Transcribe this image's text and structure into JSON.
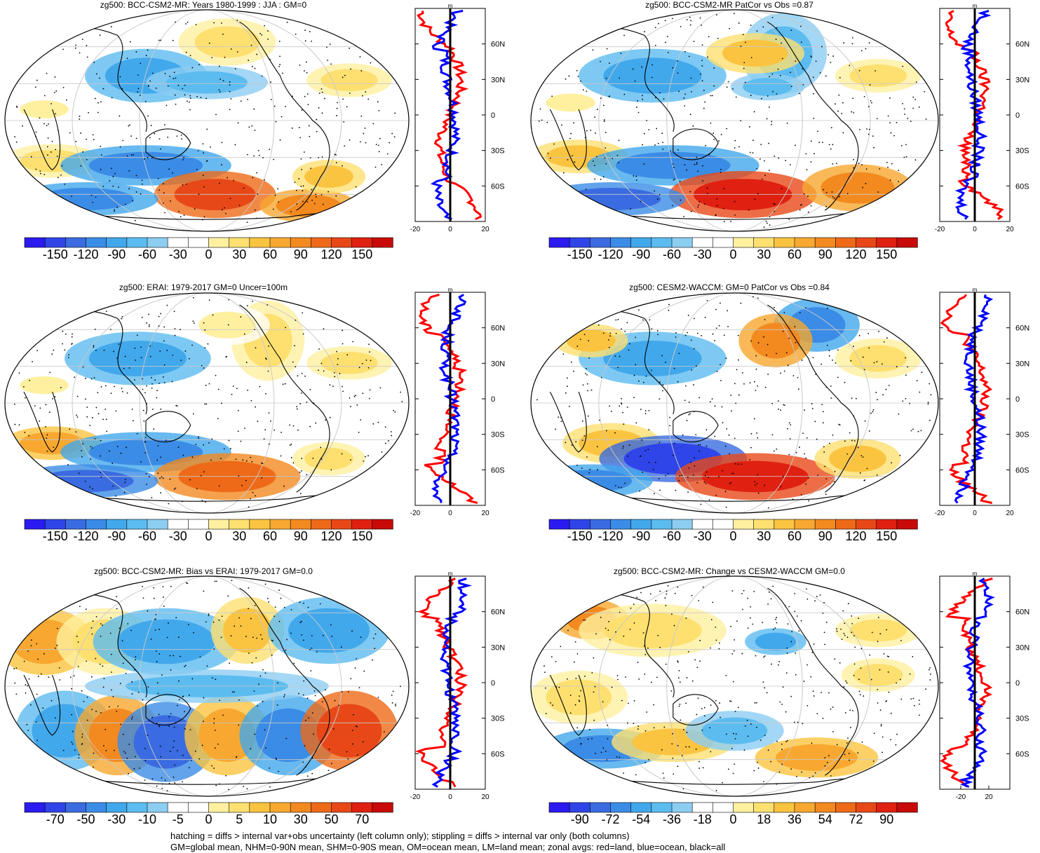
{
  "footer": {
    "line1": "hatching = diffs > internal var+obs uncertainty (left column only); stippling = diffs > internal var only (both columns)",
    "line2": "GM=global mean, NHM=0-90N mean, SHM=0-90S mean, OM=ocean mean, LM=land mean; zonal avgs: red=land, blue=ocean, black=all"
  },
  "profile_unit": "m",
  "lat_labels": [
    "60N",
    "30N",
    "0",
    "30S",
    "60S"
  ],
  "panels": [
    {
      "title": "zg500: BCC-CSM2-MR: Years 1980-1999 : JJA : GM=0",
      "cbar": [
        "-150",
        "-120",
        "-90",
        "-60",
        "-30",
        "0",
        "30",
        "60",
        "90",
        "120",
        "150"
      ],
      "xt": [
        "-20",
        "0",
        "20"
      ]
    },
    {
      "title": "zg500: BCC-CSM2-MR PatCor vs Obs =0.87",
      "cbar": [
        "-150",
        "-120",
        "-90",
        "-60",
        "-30",
        "0",
        "30",
        "60",
        "90",
        "120",
        "150"
      ],
      "xt": [
        "-20",
        "0",
        "20"
      ]
    },
    {
      "title": "zg500: ERAI: 1979-2017 GM=0 Uncer=100m",
      "cbar": [
        "-150",
        "-120",
        "-90",
        "-60",
        "-30",
        "0",
        "30",
        "60",
        "90",
        "120",
        "150"
      ],
      "xt": [
        "-20",
        "0",
        "20"
      ]
    },
    {
      "title": "zg500: CESM2-WACCM: GM=0 PatCor vs Obs =0.84",
      "cbar": [
        "-150",
        "-120",
        "-90",
        "-60",
        "-30",
        "0",
        "30",
        "60",
        "90",
        "120",
        "150"
      ],
      "xt": [
        "-20",
        "0",
        "20"
      ]
    },
    {
      "title": "zg500: BCC-CSM2-MR: Bias vs ERAI: 1979-2017 GM=0.0",
      "cbar": [
        "-70",
        "-50",
        "-30",
        "-10",
        "-5",
        "0",
        "5",
        "10",
        "30",
        "50",
        "70"
      ],
      "xt": [
        "-20",
        "0",
        "20"
      ]
    },
    {
      "title": "zg500: BCC-CSM2-MR: Change vs CESM2-WACCM GM=0.0",
      "cbar": [
        "-90",
        "-72",
        "-54",
        "-36",
        "-18",
        "0",
        "18",
        "36",
        "54",
        "72",
        "90"
      ],
      "xt": [
        "-20",
        "20"
      ]
    }
  ],
  "chart_data": {
    "type": "heatmap",
    "variable": "zg500",
    "colorbar_colors": [
      "#2b1bf0",
      "#2f45e8",
      "#3a6be0",
      "#3b8ce6",
      "#42a8ec",
      "#5cbcf0",
      "#8ccdf2",
      "#ffffff",
      "#ffffff",
      "#fff0a0",
      "#fde070",
      "#fbc440",
      "#f8a830",
      "#f38a20",
      "#ee6a18",
      "#e84818",
      "#e02010",
      "#c80a0a"
    ],
    "profile_colors": {
      "land": "#ff0000",
      "ocean": "#0000ff",
      "all": "#000000"
    }
  }
}
